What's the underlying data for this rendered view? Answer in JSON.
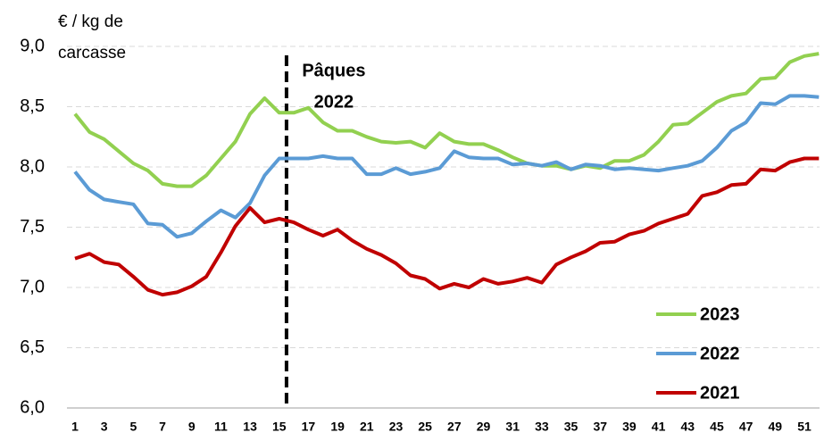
{
  "chart_data": {
    "type": "line",
    "y_label": [
      "€ / kg de",
      "carcasse"
    ],
    "categories": [
      1,
      null,
      3,
      null,
      5,
      null,
      7,
      null,
      9,
      null,
      11,
      null,
      13,
      null,
      15,
      null,
      17,
      null,
      19,
      null,
      21,
      null,
      23,
      null,
      25,
      null,
      27,
      null,
      29,
      null,
      31,
      null,
      33,
      null,
      35,
      null,
      37,
      null,
      39,
      null,
      41,
      null,
      43,
      null,
      45,
      null,
      47,
      null,
      49,
      null,
      51,
      null
    ],
    "series": [
      {
        "name": "2023",
        "color": "#92d050",
        "values": [
          8.44,
          8.29,
          8.23,
          8.13,
          8.03,
          7.97,
          7.86,
          7.84,
          7.84,
          7.93,
          8.07,
          8.21,
          8.44,
          8.57,
          8.45,
          8.45,
          8.49,
          8.37,
          8.3,
          8.3,
          8.25,
          8.21,
          8.2,
          8.21,
          8.16,
          8.28,
          8.21,
          8.19,
          8.19,
          8.14,
          8.08,
          8.03,
          8.01,
          8.01,
          7.98,
          8.01,
          7.99,
          8.05,
          8.05,
          8.1,
          8.21,
          8.35,
          8.36,
          8.45,
          8.54,
          8.59,
          8.61,
          8.73,
          8.74,
          8.87,
          8.92,
          8.94
        ]
      },
      {
        "name": "2022",
        "color": "#5b9bd5",
        "values": [
          7.96,
          7.81,
          7.73,
          7.71,
          7.69,
          7.53,
          7.52,
          7.42,
          7.45,
          7.55,
          7.64,
          7.58,
          7.7,
          7.93,
          8.07,
          8.07,
          8.07,
          8.09,
          8.07,
          8.07,
          7.94,
          7.94,
          7.99,
          7.94,
          7.96,
          7.99,
          8.13,
          8.08,
          8.07,
          8.07,
          8.02,
          8.03,
          8.01,
          8.04,
          7.98,
          8.02,
          8.01,
          7.98,
          7.99,
          7.98,
          7.97,
          7.99,
          8.01,
          8.05,
          8.16,
          8.3,
          8.37,
          8.53,
          8.52,
          8.59,
          8.59,
          8.58
        ]
      },
      {
        "name": "2021",
        "color": "#c00000",
        "values": [
          7.24,
          7.28,
          7.21,
          7.19,
          7.09,
          6.98,
          6.94,
          6.96,
          7.01,
          7.09,
          7.29,
          7.51,
          7.66,
          7.54,
          7.57,
          7.54,
          7.48,
          7.43,
          7.48,
          7.39,
          7.32,
          7.27,
          7.2,
          7.1,
          7.07,
          6.99,
          7.03,
          7.0,
          7.07,
          7.03,
          7.05,
          7.08,
          7.04,
          7.19,
          7.25,
          7.3,
          7.37,
          7.38,
          7.44,
          7.47,
          7.53,
          7.57,
          7.61,
          7.76,
          7.79,
          7.85,
          7.86,
          7.98,
          7.97,
          8.04,
          8.07,
          8.07
        ]
      }
    ],
    "ylim": [
      6,
      9
    ],
    "yticks": [
      {
        "value": 6,
        "label": "6,0"
      },
      {
        "value": 6.5,
        "label": "6,5"
      },
      {
        "value": 7,
        "label": "7,0"
      },
      {
        "value": 7.5,
        "label": "7,5"
      },
      {
        "value": 8,
        "label": "8,0"
      },
      {
        "value": 8.5,
        "label": "8,5"
      },
      {
        "value": 9,
        "label": "9,0"
      }
    ],
    "grid": true,
    "legend": "lower right",
    "annotations": [
      {
        "text": [
          "Pâques",
          "2022"
        ],
        "x": 15.5
      }
    ]
  }
}
